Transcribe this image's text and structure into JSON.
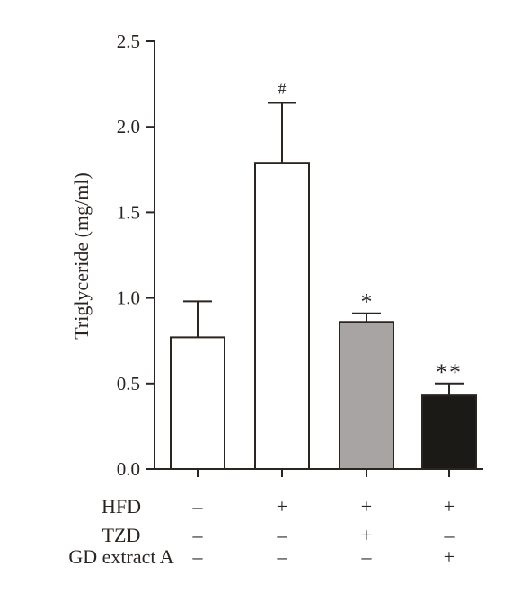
{
  "chart_data": {
    "type": "bar",
    "title": "",
    "xlabel": "",
    "ylabel": "Triglyceride (mg/ml)",
    "ylim": [
      0,
      2.5
    ],
    "yticks": [
      "0.0",
      "0.5",
      "1.0",
      "1.5",
      "2.0",
      "2.5"
    ],
    "grid": false,
    "bars": [
      {
        "value": 0.77,
        "error": 0.21,
        "color": "#ffffff",
        "significance": ""
      },
      {
        "value": 1.79,
        "error": 0.35,
        "color": "#ffffff",
        "significance": "#"
      },
      {
        "value": 0.86,
        "error": 0.05,
        "color": "#a9a4a4",
        "significance": "*"
      },
      {
        "value": 0.43,
        "error": 0.07,
        "color": "#1c1a17",
        "significance": "**"
      }
    ],
    "conditions": [
      {
        "label": "HFD",
        "values": [
          "–",
          "+",
          "+",
          "+"
        ]
      },
      {
        "label": "TZD",
        "values": [
          "–",
          "–",
          "+",
          "–"
        ]
      },
      {
        "label": "GD extract A",
        "values": [
          "–",
          "–",
          "–",
          "+"
        ]
      }
    ],
    "line_color": "#2b2522"
  }
}
